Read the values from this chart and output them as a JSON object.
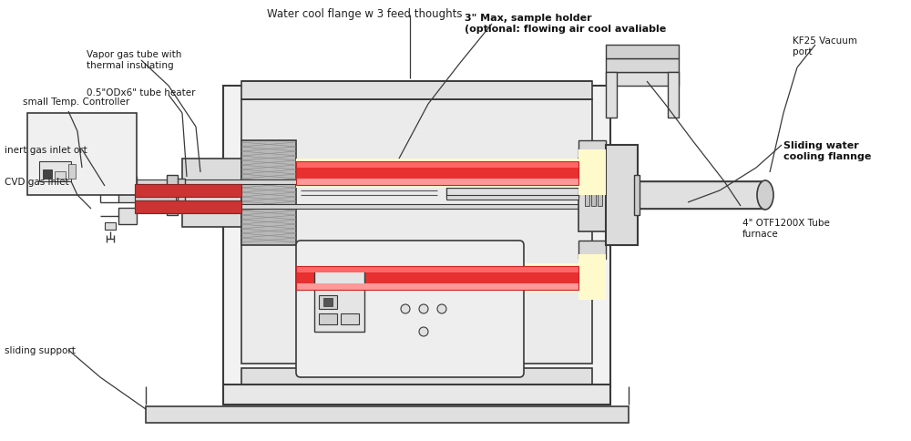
{
  "title": "Water cool flange w 3 feed thoughts",
  "bg_color": "#ffffff",
  "line_color": "#3a3a3a",
  "labels": {
    "vapor_gas": "Vapor gas tube with\nthermal insulating",
    "tube_heater": "0.5\"ODx6\" tube heater",
    "inert_gas": "inert gas inlet ort",
    "cvd_gas": "CVD gas inlet",
    "temp_ctrl": "small Temp. Controller",
    "sliding_support": "sliding support",
    "sample_holder": "3\" Max, sample holder\n(optional: flowing air cool avaliable",
    "kf25": "KF25 Vacuum\nport",
    "sliding_water": "Sliding water\ncooling flannge",
    "otf": "4\" OTF1200X Tube\nfurnace"
  }
}
